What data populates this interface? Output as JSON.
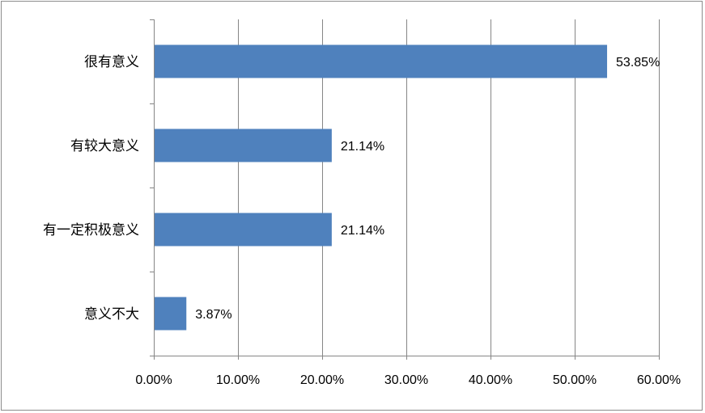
{
  "chart_data": {
    "type": "bar",
    "orientation": "horizontal",
    "categories": [
      "很有意义",
      "有较大意义",
      "有一定积极意义",
      "意义不大"
    ],
    "values": [
      53.85,
      21.14,
      21.14,
      3.87
    ],
    "data_labels": [
      "53.85%",
      "21.14%",
      "21.14%",
      "3.87%"
    ],
    "xlim": [
      0,
      60
    ],
    "x_ticks": [
      0,
      10,
      20,
      30,
      40,
      50,
      60
    ],
    "x_tick_labels": [
      "0.00%",
      "10.00%",
      "20.00%",
      "30.00%",
      "40.00%",
      "50.00%",
      "60.00%"
    ],
    "grid": "vertical",
    "legend": "none",
    "bar_color": "#4f81bd",
    "grid_color": "#868686"
  }
}
